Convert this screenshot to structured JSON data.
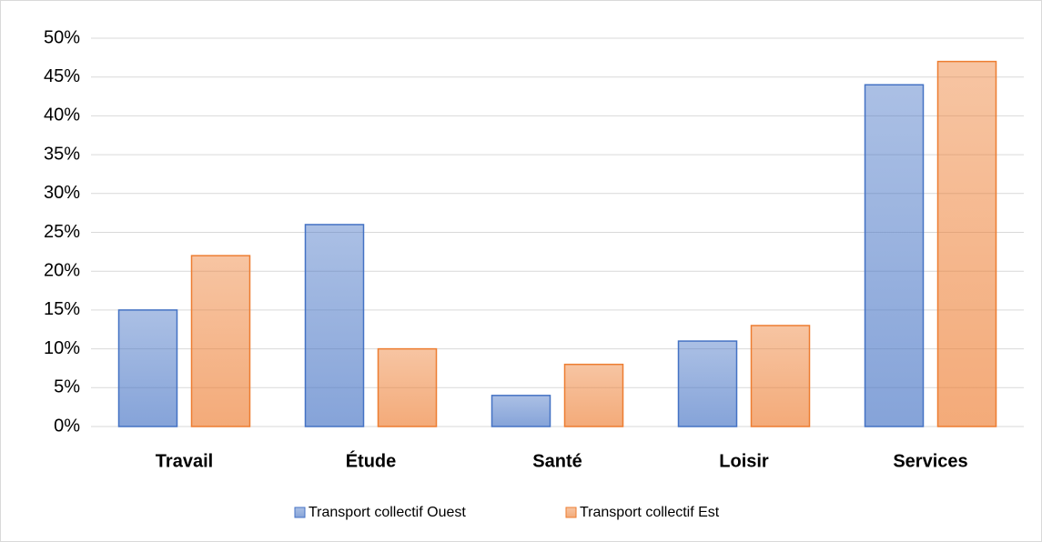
{
  "chart_data": {
    "type": "bar",
    "categories": [
      "Travail",
      "Étude",
      "Santé",
      "Loisir",
      "Services"
    ],
    "series": [
      {
        "name": "Transport collectif Ouest",
        "color": "#4472c4",
        "values": [
          15,
          26,
          4,
          11,
          44
        ]
      },
      {
        "name": "Transport collectif Est",
        "color": "#ed7d31",
        "values": [
          22,
          10,
          8,
          13,
          47
        ]
      }
    ],
    "ylim": [
      0,
      50
    ],
    "yticks": [
      {
        "value": 0,
        "label": "0%"
      },
      {
        "value": 5,
        "label": "5%"
      },
      {
        "value": 10,
        "label": "10%"
      },
      {
        "value": 15,
        "label": "15%"
      },
      {
        "value": 20,
        "label": "20%"
      },
      {
        "value": 25,
        "label": "25%"
      },
      {
        "value": 30,
        "label": "30%"
      },
      {
        "value": 35,
        "label": "35%"
      },
      {
        "value": 40,
        "label": "40%"
      },
      {
        "value": 45,
        "label": "45%"
      },
      {
        "value": 50,
        "label": "50%"
      }
    ],
    "grid": true,
    "legend": "bottom"
  }
}
